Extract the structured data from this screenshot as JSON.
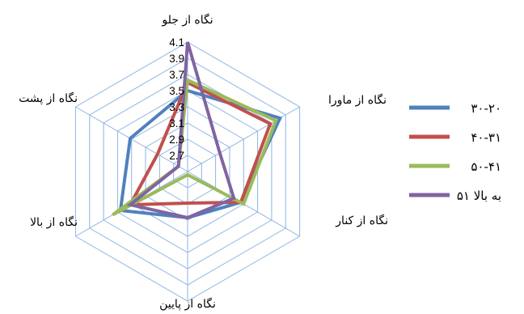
{
  "chart_data": {
    "type": "radar",
    "categories": [
      "نگاه از جلو",
      "نگاه از ماورا",
      "نگاه از کنار",
      "نگاه از پایین",
      "نگاه از بالا",
      "نگاه از پشت"
    ],
    "ticks": [
      2.7,
      2.9,
      3.1,
      3.3,
      3.5,
      3.7,
      3.9,
      4.1
    ],
    "range": [
      2.5,
      4.1
    ],
    "grid": true,
    "legend_position": "right",
    "series": [
      {
        "name": "۳۰-۲۰",
        "color": "#4f81bd",
        "values": [
          3.5,
          3.82,
          3.26,
          3.07,
          3.46,
          3.32
        ]
      },
      {
        "name": "۴۰-۳۱",
        "color": "#c0504d",
        "values": [
          3.6,
          3.68,
          3.26,
          2.89,
          3.32,
          2.93
        ]
      },
      {
        "name": "۵۰-۴۱",
        "color": "#9bbb59",
        "values": [
          3.63,
          3.76,
          3.3,
          2.54,
          3.57,
          2.63
        ]
      },
      {
        "name": "۵۱ به بالا",
        "color": "#8064a2",
        "values": [
          4.1,
          2.96,
          3.16,
          3.07,
          3.32,
          2.63
        ]
      }
    ]
  }
}
